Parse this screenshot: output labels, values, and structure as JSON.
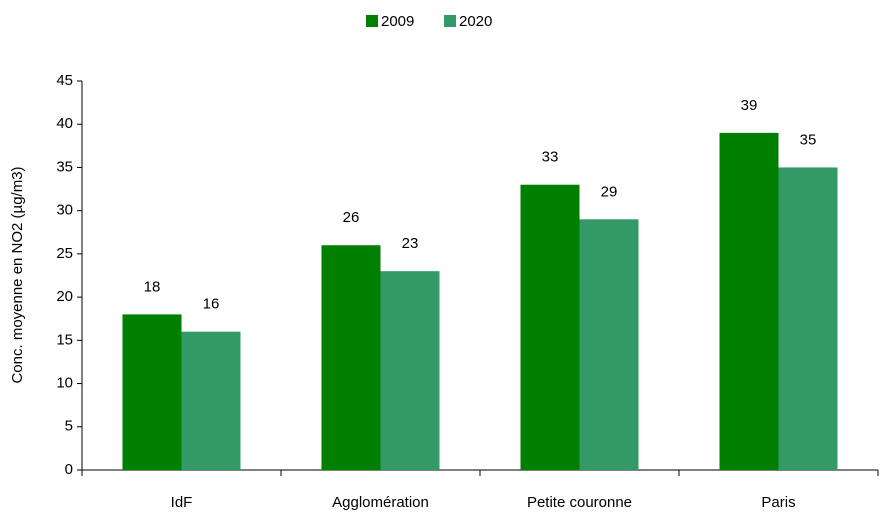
{
  "chart_data": {
    "type": "bar",
    "y_label": "Conc. moyenne en NO2 (µg/m3)",
    "categories": [
      "IdF",
      "Agglomération",
      "Petite couronne",
      "Paris"
    ],
    "series": [
      {
        "name": "2009",
        "color": "#007f00",
        "values": [
          18,
          26,
          33,
          39
        ]
      },
      {
        "name": "2020",
        "color": "#339966",
        "values": [
          16,
          23,
          29,
          35
        ]
      }
    ],
    "ylim": [
      0,
      45
    ],
    "yticks": [
      0,
      5,
      10,
      15,
      20,
      25,
      30,
      35,
      40,
      45
    ],
    "legend": "top",
    "grid": false
  }
}
